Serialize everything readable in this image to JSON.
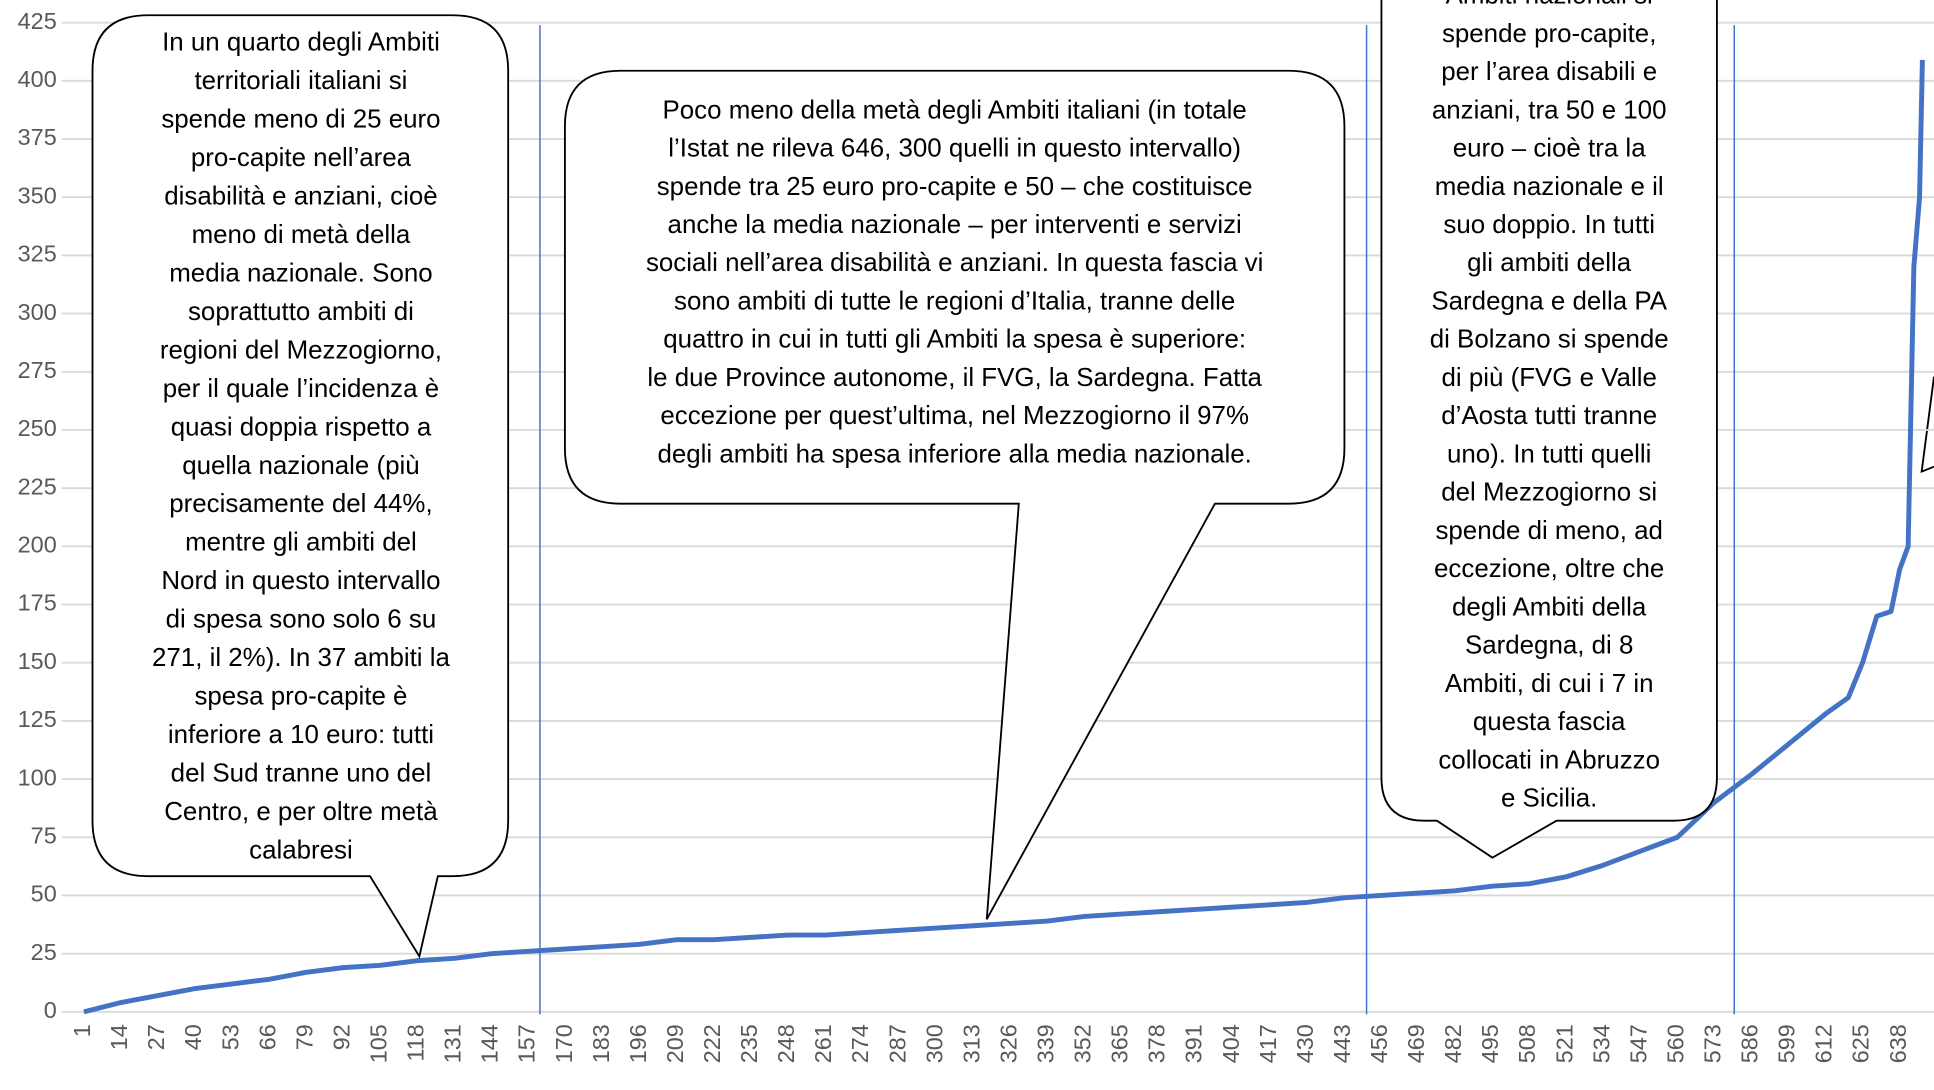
{
  "chart_data": {
    "type": "line",
    "x": [
      1,
      14,
      27,
      40,
      53,
      66,
      79,
      92,
      105,
      118,
      131,
      144,
      157,
      170,
      183,
      196,
      209,
      222,
      235,
      248,
      261,
      274,
      287,
      300,
      313,
      326,
      339,
      352,
      365,
      378,
      391,
      404,
      417,
      430,
      443,
      456,
      469,
      482,
      495,
      508,
      521,
      534,
      547,
      560,
      573,
      586,
      599,
      612,
      620,
      625,
      630,
      635,
      638,
      641,
      643,
      645,
      646
    ],
    "series": [
      {
        "color": "#4472c4",
        "values": [
          0,
          4,
          7,
          10,
          12,
          14,
          17,
          19,
          20,
          22,
          23,
          25,
          26,
          27,
          28,
          29,
          31,
          31,
          32,
          33,
          33,
          34,
          35,
          36,
          37,
          38,
          39,
          41,
          42,
          43,
          44,
          45,
          46,
          47,
          49,
          50,
          51,
          52,
          54,
          55,
          58,
          63,
          69,
          75,
          90,
          102,
          115,
          128,
          135,
          150,
          170,
          172,
          190,
          200,
          320,
          350,
          409
        ]
      }
    ],
    "xlim": [
      -1,
      652
    ],
    "xticks": [
      1,
      14,
      27,
      40,
      53,
      66,
      79,
      92,
      105,
      118,
      131,
      144,
      157,
      170,
      183,
      196,
      209,
      222,
      235,
      248,
      261,
      274,
      287,
      300,
      313,
      326,
      339,
      352,
      365,
      378,
      391,
      404,
      417,
      430,
      443,
      456,
      469,
      482,
      495,
      508,
      521,
      534,
      547,
      560,
      573,
      586,
      599,
      612,
      625,
      638
    ],
    "ylim": [
      0,
      425
    ],
    "yticks": [
      0,
      25,
      50,
      75,
      100,
      125,
      150,
      175,
      200,
      225,
      250,
      275,
      300,
      325,
      350,
      375,
      400,
      425
    ],
    "grid": true,
    "vlines": [
      161,
      451,
      580
    ],
    "callouts": [
      {
        "lines": [
          "In un quarto degli Ambiti",
          "territoriali italiani si",
          "spende meno di 25 euro",
          "pro-capite nell’area",
          "disabilità e anziani, cioè",
          "meno di metà della",
          "media nazionale. Sono",
          "soprattutto ambiti di",
          "regioni del Mezzogiorno,",
          "per il quale l’incidenza è",
          "quasi doppia rispetto a",
          "quella nazionale (più",
          "precisamente del 44%,",
          "mentre gli ambiti del",
          "Nord in questo intervallo",
          "di spesa sono solo 6 su",
          "271, il 2%). In 37 ambiti la",
          "spesa pro-capite è",
          "inferiore a 10 euro: tutti",
          "del Sud tranne uno del",
          "Centro, e per oltre metà",
          "calabresi"
        ]
      },
      {
        "lines": [
          "Poco meno della metà degli Ambiti italiani (in totale",
          "l’Istat ne rileva 646, 300 quelli in questo intervallo)",
          "spende tra 25 euro pro-capite e 50 – che costituisce",
          "anche la media nazionale – per interventi e servizi",
          "sociali nell’area disabilità e anziani. In questa fascia vi",
          "sono ambiti di tutte le regioni d’Italia, tranne delle",
          "quattro in cui in tutti gli Ambiti la spesa è superiore:",
          "le due Province autonome, il FVG, la Sardegna. Fatta",
          "eccezione per quest’ultima, nel Mezzogiorno il 97%",
          "degli ambiti ha spesa inferiore alla media nazionale."
        ]
      },
      {
        "lines": [
          "Ambiti nazionali si",
          "spende pro-capite,",
          "per l’area disabili e",
          "anziani, tra 50 e 100",
          "euro – cioè tra la",
          "media nazionale e il",
          "suo doppio. In tutti",
          "gli ambiti della",
          "Sardegna e della PA",
          "di Bolzano si spende",
          "di più (FVG e Valle",
          "d’Aosta tutti tranne",
          "uno). In tutti quelli",
          "del Mezzogiorno si",
          "spende di meno, ad",
          "eccezione, oltre che",
          "degli Ambiti della",
          "Sardegna, di 8",
          "Ambiti, di cui i 7 in",
          "questa fascia",
          "collocati in Abruzzo",
          "e Sicilia."
        ]
      }
    ]
  }
}
